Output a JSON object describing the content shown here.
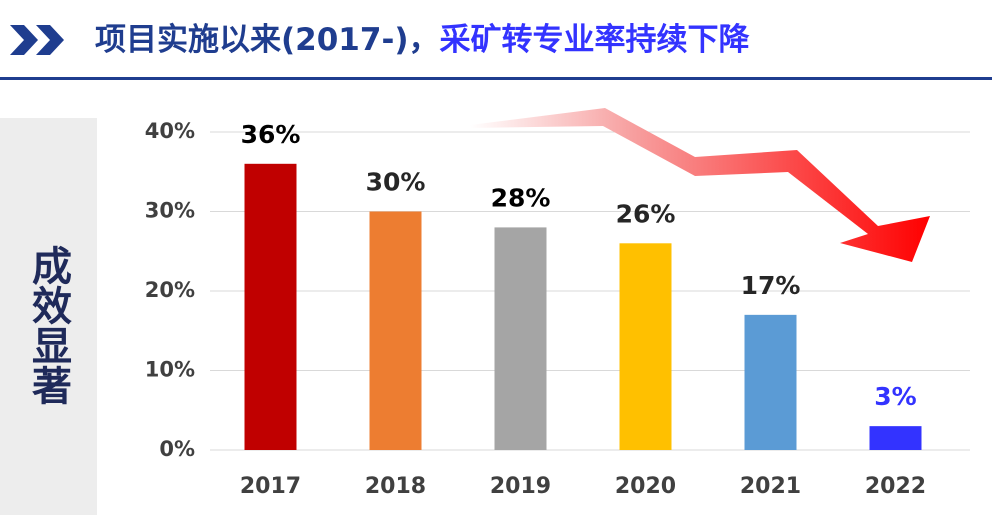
{
  "header": {
    "title": [
      "项目实施以来(2017-)，",
      "采矿转专业率持续下降"
    ],
    "title_colors": [
      "#1f3d8f",
      "#3333ff"
    ]
  },
  "sidebar": {
    "label": "成效显著"
  },
  "chart_data": {
    "type": "bar",
    "categories": [
      "2017",
      "2018",
      "2019",
      "2020",
      "2021",
      "2022"
    ],
    "values": [
      36,
      30,
      28,
      26,
      17,
      3
    ],
    "value_labels": [
      "36%",
      "30%",
      "28%",
      "26%",
      "17%",
      "3%"
    ],
    "colors": [
      "#c00000",
      "#ed7d31",
      "#a5a5a5",
      "#ffc000",
      "#5b9bd5",
      "#3333ff"
    ],
    "label_colors": [
      "#000000",
      "#262626",
      "#000000",
      "#262626",
      "#262626",
      "#3333ff"
    ],
    "ylim": [
      0,
      40
    ],
    "yticks": [
      {
        "value": 0,
        "label": "0%"
      },
      {
        "value": 10,
        "label": "10%"
      },
      {
        "value": 20,
        "label": "20%"
      },
      {
        "value": 30,
        "label": "30%"
      },
      {
        "value": 40,
        "label": "40%"
      }
    ],
    "grid": true
  }
}
